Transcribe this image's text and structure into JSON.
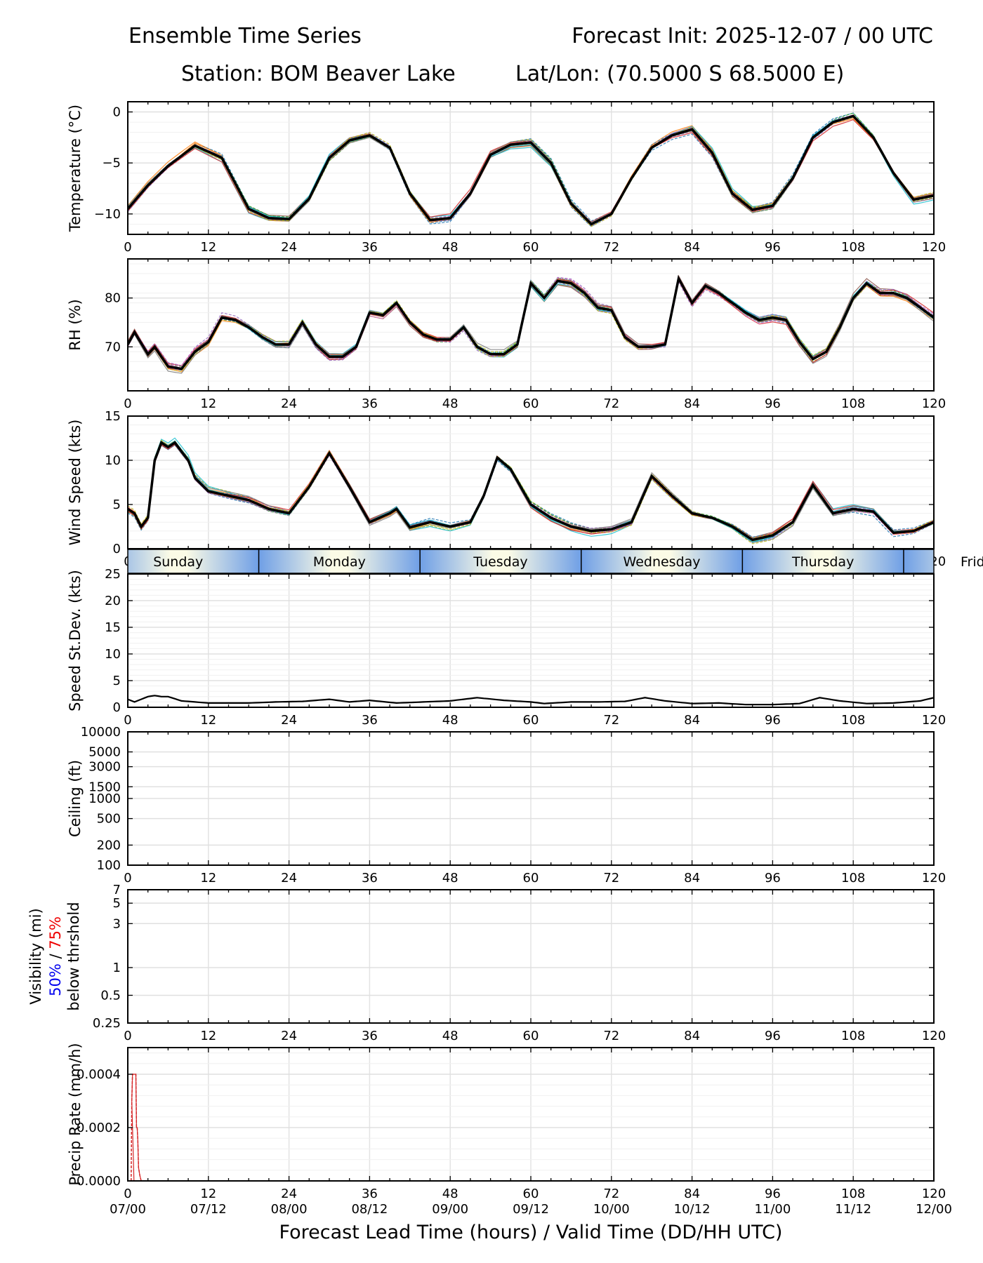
{
  "header": {
    "title_left": "Ensemble Time Series",
    "title_right": "Forecast Init: 2025-12-07 / 00 UTC",
    "station": "Station: BOM Beaver Lake",
    "latlon": "Lat/Lon: (70.5000 S 68.5000 E)"
  },
  "chart_data": {
    "type": "line",
    "x_range": [
      0,
      120
    ],
    "x_ticks": [
      0,
      12,
      24,
      36,
      48,
      60,
      72,
      84,
      96,
      108,
      120
    ],
    "xlabel": "Forecast Lead Time (hours) / Valid Time (DD/HH UTC)",
    "valid_time_labels": [
      "07/00",
      "07/12",
      "08/00",
      "08/12",
      "09/00",
      "09/12",
      "10/00",
      "10/12",
      "11/00",
      "11/12",
      "12/00"
    ],
    "day_band": {
      "days": [
        {
          "name": "Sunday",
          "start": 0,
          "end": 19.5
        },
        {
          "name": "Monday",
          "start": 19.5,
          "end": 43.5
        },
        {
          "name": "Tuesday",
          "start": 43.5,
          "end": 67.5
        },
        {
          "name": "Wednesday",
          "start": 67.5,
          "end": 91.5
        },
        {
          "name": "Thursday",
          "start": 91.5,
          "end": 115.5
        },
        {
          "name": "Friday",
          "start": 115.5,
          "end": 139.5
        }
      ]
    },
    "panels": [
      {
        "id": "temperature",
        "ylabel": "Temperature (°C)",
        "yscale": "linear",
        "ylim": [
          -12,
          1
        ],
        "yticks": [
          0,
          -5,
          -10
        ],
        "mean_series": {
          "name": "ensemble mean",
          "x": [
            0,
            3,
            6,
            10,
            14,
            18,
            21,
            24,
            27,
            30,
            33,
            36,
            39,
            42,
            45,
            48,
            51,
            54,
            57,
            60,
            63,
            66,
            69,
            72,
            75,
            78,
            81,
            84,
            87,
            90,
            93,
            96,
            99,
            102,
            105,
            108,
            111,
            114,
            117,
            120
          ],
          "values": [
            -9.5,
            -7.2,
            -5.3,
            -3.3,
            -4.5,
            -9.5,
            -10.4,
            -10.5,
            -8.5,
            -4.5,
            -2.8,
            -2.3,
            -3.5,
            -8.0,
            -10.6,
            -10.4,
            -8.0,
            -4.2,
            -3.2,
            -3.0,
            -5.0,
            -9.0,
            -11.0,
            -10.0,
            -6.5,
            -3.5,
            -2.3,
            -1.7,
            -4.0,
            -8.0,
            -9.6,
            -9.2,
            -6.5,
            -2.5,
            -1.0,
            -0.4,
            -2.5,
            -6.0,
            -8.6,
            -8.2
          ]
        },
        "members_count": 20
      },
      {
        "id": "rh",
        "ylabel": "RH (%)",
        "yscale": "linear",
        "ylim": [
          61,
          88
        ],
        "yticks": [
          70,
          80
        ],
        "mean_series": {
          "name": "ensemble mean",
          "x": [
            0,
            1,
            3,
            4,
            6,
            8,
            10,
            12,
            14,
            16,
            18,
            20,
            22,
            24,
            26,
            28,
            30,
            32,
            34,
            36,
            38,
            40,
            42,
            44,
            46,
            48,
            50,
            52,
            54,
            56,
            58,
            60,
            62,
            64,
            66,
            68,
            70,
            72,
            74,
            76,
            78,
            80,
            82,
            84,
            86,
            88,
            90,
            92,
            94,
            96,
            98,
            100,
            102,
            104,
            106,
            108,
            110,
            112,
            114,
            116,
            118,
            120
          ],
          "values": [
            70.5,
            73,
            68.5,
            70,
            66,
            65.5,
            69,
            71,
            76,
            75.5,
            74,
            72,
            70.5,
            70.5,
            75,
            70.5,
            68,
            68,
            70,
            77,
            76.5,
            79,
            75,
            72.5,
            71.5,
            71.5,
            74,
            70,
            68.5,
            68.5,
            70.5,
            83,
            80,
            83.5,
            83,
            81,
            78,
            77.5,
            72,
            70,
            70,
            70.5,
            84,
            79,
            82.5,
            81,
            79,
            77,
            75.5,
            76,
            75.5,
            71,
            67.5,
            69,
            74,
            80,
            83,
            81,
            81,
            80,
            78,
            76
          ]
        },
        "members_count": 20
      },
      {
        "id": "wind",
        "ylabel": "Wind Speed (kts)",
        "yscale": "linear",
        "ylim": [
          0,
          15
        ],
        "yticks": [
          0,
          5,
          10,
          15
        ],
        "mean_series": {
          "name": "ensemble mean",
          "x": [
            0,
            1,
            2,
            3,
            4,
            5,
            6,
            7,
            8,
            9,
            10,
            12,
            15,
            18,
            21,
            24,
            27,
            30,
            33,
            36,
            39,
            40,
            42,
            45,
            48,
            51,
            53,
            55,
            57,
            60,
            63,
            66,
            69,
            72,
            75,
            78,
            81,
            84,
            87,
            90,
            93,
            96,
            99,
            102,
            105,
            108,
            111,
            114,
            117,
            120
          ],
          "values": [
            4.5,
            4.0,
            2.5,
            3.5,
            10.0,
            12.0,
            11.5,
            12.0,
            11.0,
            10.0,
            8.0,
            6.5,
            6.0,
            5.5,
            4.5,
            4.0,
            7.0,
            10.8,
            7.0,
            3.0,
            4.0,
            4.5,
            2.4,
            3.0,
            2.5,
            3.0,
            6.0,
            10.3,
            9.0,
            5.0,
            3.5,
            2.5,
            2.0,
            2.2,
            3.0,
            8.2,
            6.0,
            4.0,
            3.5,
            2.5,
            1.0,
            1.5,
            3.0,
            7.2,
            4.0,
            4.5,
            4.2,
            1.8,
            2.0,
            3.0
          ]
        },
        "members_count": 20
      },
      {
        "id": "speed_stdev",
        "ylabel": "Speed St.Dev. (kts)",
        "yscale": "linear",
        "ylim": [
          0,
          25
        ],
        "yticks": [
          0,
          5,
          10,
          15,
          20,
          25
        ],
        "mean_series": {
          "name": "st.dev.",
          "x": [
            0,
            1,
            2,
            3,
            4,
            5,
            6,
            8,
            10,
            12,
            14,
            18,
            22,
            26,
            30,
            33,
            36,
            40,
            44,
            48,
            52,
            56,
            60,
            62,
            66,
            70,
            74,
            77,
            80,
            84,
            88,
            92,
            96,
            100,
            103,
            106,
            110,
            114,
            118,
            120
          ],
          "values": [
            1.5,
            1.0,
            1.5,
            2.0,
            2.2,
            2.0,
            2.0,
            1.2,
            1.0,
            0.8,
            0.8,
            0.8,
            1.0,
            1.1,
            1.5,
            1.0,
            1.3,
            0.8,
            1.0,
            1.2,
            1.8,
            1.3,
            1.0,
            0.7,
            1.0,
            1.0,
            1.1,
            1.8,
            1.2,
            0.7,
            0.8,
            0.5,
            0.5,
            0.7,
            1.8,
            1.2,
            0.7,
            0.8,
            1.2,
            1.8
          ]
        }
      },
      {
        "id": "ceiling",
        "ylabel": "Ceiling (ft)",
        "yscale": "log",
        "ylim": [
          100,
          10000
        ],
        "yticks": [
          100,
          200,
          500,
          1000,
          1500,
          3000,
          5000,
          10000
        ],
        "mean_series": null
      },
      {
        "id": "visibility",
        "ylabel_lines": [
          "Visibility (mi)",
          "50%",
          " / ",
          "75%",
          "below thrshold"
        ],
        "label_colors": {
          "p50": "#0000ee",
          "p75": "#ee0000"
        },
        "yscale": "log",
        "ylim": [
          0.25,
          7
        ],
        "yticks": [
          0.25,
          0.5,
          1,
          3,
          5,
          7
        ],
        "mean_series": null
      },
      {
        "id": "precip",
        "ylabel": "Precip Rate (mm/h)",
        "yscale": "linear",
        "ylim": [
          0,
          0.0005
        ],
        "yticks": [
          "0.0000",
          "0.0002",
          "0.0004"
        ],
        "series": {
          "name": "precip member",
          "x": [
            0.5,
            0.6,
            0.7,
            1.0,
            1.2,
            1.3,
            1.4,
            1.5,
            1.6,
            1.8,
            2.0
          ],
          "values": [
            0,
            0.0003,
            0.0004,
            0.0004,
            0.0004,
            0.0002,
            0.0002,
            0.00015,
            5e-05,
            2e-05,
            0
          ],
          "color": "#d62728"
        }
      }
    ],
    "member_palette": [
      "#1f77b4",
      "#ff7f0e",
      "#2ca02c",
      "#d62728",
      "#9467bd",
      "#8c564b",
      "#e377c2",
      "#7f7f7f",
      "#bcbd22",
      "#17becf"
    ]
  }
}
